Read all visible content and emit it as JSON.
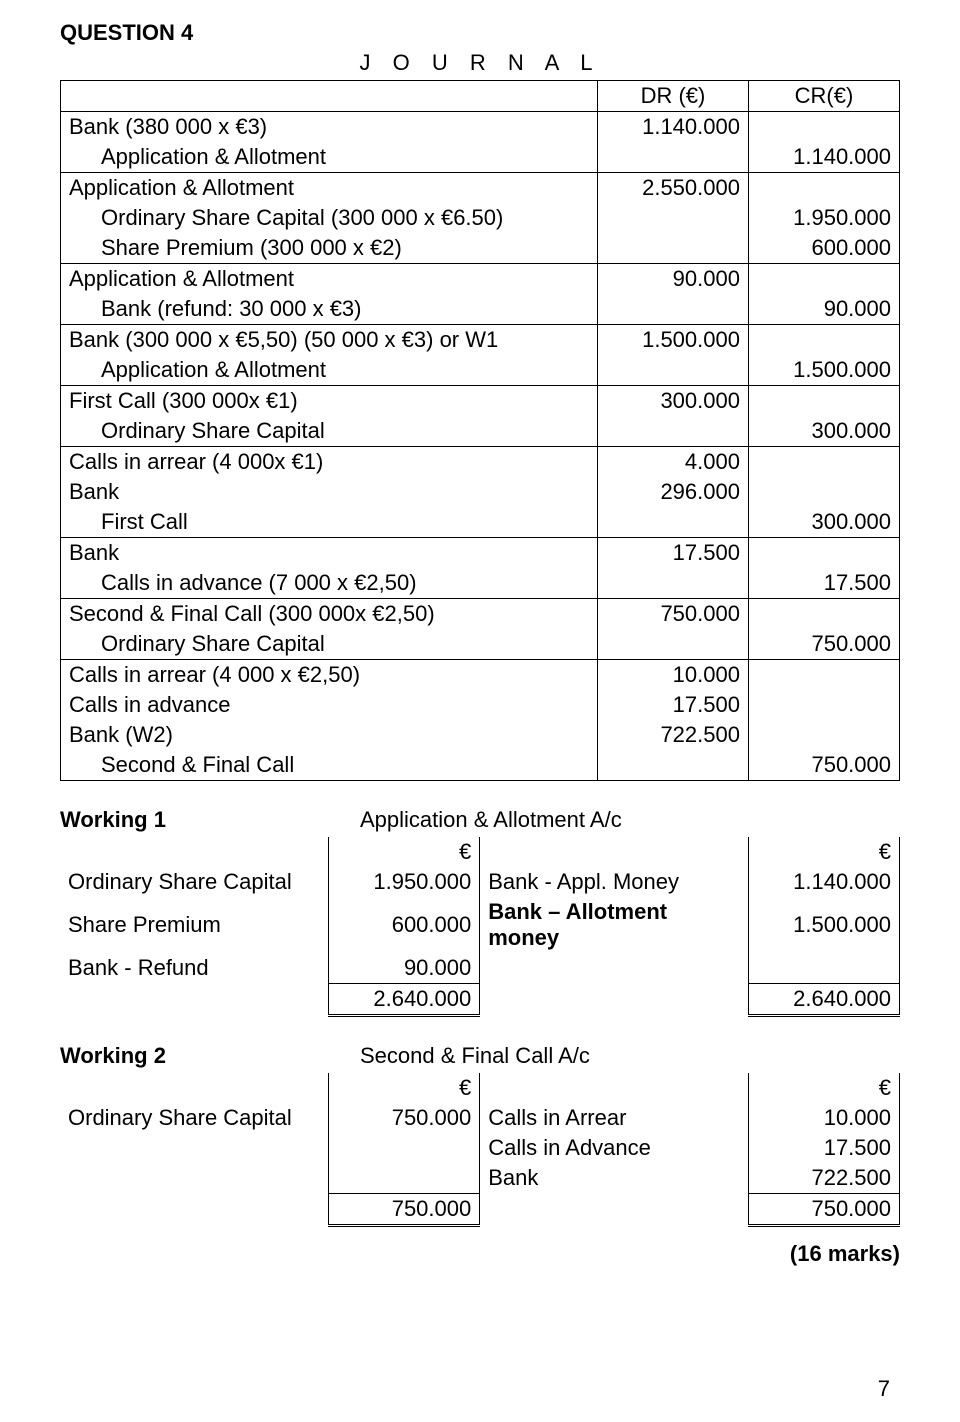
{
  "title": "QUESTION 4",
  "journal_label": "J O U R N A L",
  "headers": {
    "dr": "DR (€)",
    "cr": "CR(€)"
  },
  "entries": [
    {
      "rows": [
        {
          "desc": "Bank  (380 000 x €3)",
          "indent": 0,
          "dr": "1.140.000",
          "cr": ""
        },
        {
          "desc": "Application & Allotment",
          "indent": 1,
          "dr": "",
          "cr": "1.140.000"
        }
      ]
    },
    {
      "rows": [
        {
          "desc": "Application & Allotment",
          "indent": 0,
          "dr": "2.550.000",
          "cr": ""
        },
        {
          "desc": "Ordinary Share Capital  (300 000 x €6.50)",
          "indent": 1,
          "dr": "",
          "cr": "1.950.000"
        },
        {
          "desc": "Share Premium  (300 000 x €2)",
          "indent": 1,
          "dr": "",
          "cr": "600.000"
        }
      ]
    },
    {
      "rows": [
        {
          "desc": "Application & Allotment",
          "indent": 0,
          "dr": "90.000",
          "cr": ""
        },
        {
          "desc": "Bank  (refund: 30 000 x  €3)",
          "indent": 1,
          "dr": "",
          "cr": "90.000"
        }
      ]
    },
    {
      "rows": [
        {
          "desc": "Bank  (300 000 x €5,50) (50 000 x €3) or W1",
          "indent": 0,
          "dr": "1.500.000",
          "cr": ""
        },
        {
          "desc": "Application & Allotment",
          "indent": 1,
          "dr": "",
          "cr": "1.500.000"
        }
      ]
    },
    {
      "rows": [
        {
          "desc": "First Call (300 000x €1)",
          "indent": 0,
          "dr": "300.000",
          "cr": ""
        },
        {
          "desc": "Ordinary Share Capital",
          "indent": 1,
          "dr": "",
          "cr": "300.000"
        }
      ]
    },
    {
      "rows": [
        {
          "desc": "Calls in arrear (4 000x €1)",
          "indent": 0,
          "dr": "4.000",
          "cr": ""
        },
        {
          "desc": "Bank",
          "indent": 0,
          "dr": "296.000",
          "cr": ""
        },
        {
          "desc": "First Call",
          "indent": 1,
          "dr": "",
          "cr": "300.000"
        }
      ]
    },
    {
      "rows": [
        {
          "desc": "Bank",
          "indent": 0,
          "dr": "17.500",
          "cr": ""
        },
        {
          "desc": "Calls in advance  (7 000 x €2,50)",
          "indent": 1,
          "dr": "",
          "cr": "17.500"
        }
      ]
    },
    {
      "rows": [
        {
          "desc": "Second & Final Call (300 000x €2,50)",
          "indent": 0,
          "dr": "750.000",
          "cr": ""
        },
        {
          "desc": "Ordinary Share Capital",
          "indent": 1,
          "dr": "",
          "cr": "750.000"
        }
      ]
    },
    {
      "rows": [
        {
          "desc": "Calls in arrear (4 000 x €2,50)",
          "indent": 0,
          "dr": "10.000",
          "cr": ""
        },
        {
          "desc": "Calls in advance",
          "indent": 0,
          "dr": "17.500",
          "cr": ""
        },
        {
          "desc": "Bank  (W2)",
          "indent": 0,
          "dr": "722.500",
          "cr": ""
        },
        {
          "desc": "Second & Final Call",
          "indent": 1,
          "dr": "",
          "cr": "750.000"
        }
      ]
    }
  ],
  "working1": {
    "title": "Working 1",
    "heading": "Application & Allotment A/c",
    "currency": "€",
    "left": [
      {
        "lbl": "Ordinary  Share Capital",
        "amt": "1.950.000"
      },
      {
        "lbl": "Share Premium",
        "amt": "600.000"
      },
      {
        "lbl": "Bank - Refund",
        "amt": "90.000"
      },
      {
        "lbl": "",
        "amt": "2.640.000",
        "total": true
      }
    ],
    "right": [
      {
        "lbl": "Bank - Appl. Money",
        "amt": "1.140.000",
        "bold": false
      },
      {
        "lbl": "Bank – Allotment  money",
        "amt": "1.500.000",
        "bold": true
      },
      {
        "lbl": "",
        "amt": ""
      },
      {
        "lbl": "",
        "amt": "2.640.000",
        "total": true
      }
    ]
  },
  "working2": {
    "title": "Working 2",
    "heading": "Second & Final Call A/c",
    "currency": "€",
    "left": [
      {
        "lbl": "Ordinary  Share Capital",
        "amt": "750.000"
      },
      {
        "lbl": "",
        "amt": ""
      },
      {
        "lbl": "",
        "amt": ""
      },
      {
        "lbl": "",
        "amt": "750.000",
        "total": true
      }
    ],
    "right": [
      {
        "lbl": "Calls  in Arrear",
        "amt": "10.000"
      },
      {
        "lbl": "Calls  in Advance",
        "amt": "17.500"
      },
      {
        "lbl": "Bank",
        "amt": "722.500"
      },
      {
        "lbl": "",
        "amt": "750.000",
        "total": true
      }
    ]
  },
  "marks": "(16 marks)",
  "page": "7"
}
